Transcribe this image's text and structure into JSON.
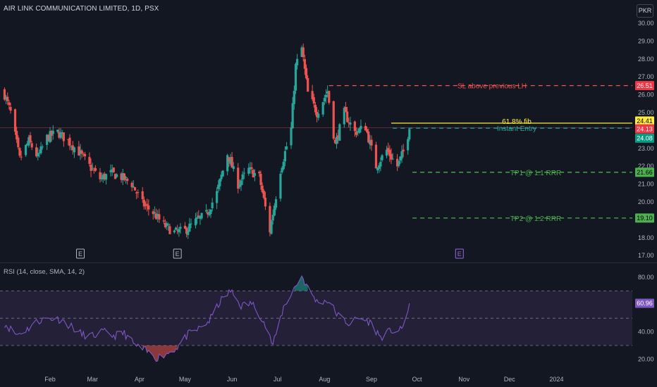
{
  "header": {
    "title": "AIR LINK COMMUNICATION LIMITED, 1D, PSX",
    "currency": "PKR"
  },
  "rsi_header": {
    "title": "RSI (14, close, SMA, 14, 2)"
  },
  "colors": {
    "background": "#131722",
    "up": "#26a69a",
    "down": "#ef5350",
    "rsi_line": "#7e57c2",
    "rsi_band": "#2a2440",
    "sl_line": "#ef5350",
    "fib_line": "#ffeb3b",
    "entry_line": "#26a69a",
    "tp_line": "#4caf50",
    "axis_text": "#b2b5be"
  },
  "chart_data": [
    {
      "type": "candlestick",
      "title": "AIR LINK COMMUNICATION LIMITED, 1D, PSX",
      "x_axis": {
        "tick_labels": [
          "Feb",
          "Mar",
          "Apr",
          "May",
          "Jun",
          "Jul",
          "Aug",
          "Sep",
          "Oct",
          "Nov",
          "Dec",
          "2024"
        ]
      },
      "y_axis": {
        "unit": "PKR",
        "range": [
          17.0,
          30.5
        ],
        "tick_labels": [
          "30.00",
          "29.00",
          "28.00",
          "27.00",
          "26.00",
          "25.00",
          "24.00",
          "23.00",
          "22.00",
          "21.00",
          "20.00",
          "19.00",
          "18.00",
          "17.00"
        ]
      },
      "close_path": [
        [
          "2023-01-02",
          26.0
        ],
        [
          "2023-01-06",
          25.0
        ],
        [
          "2023-01-12",
          22.4
        ],
        [
          "2023-01-18",
          23.4
        ],
        [
          "2023-01-24",
          22.5
        ],
        [
          "2023-01-30",
          23.6
        ],
        [
          "2023-02-06",
          23.9
        ],
        [
          "2023-02-13",
          23.4
        ],
        [
          "2023-02-20",
          22.8
        ],
        [
          "2023-02-27",
          22.0
        ],
        [
          "2023-03-06",
          21.3
        ],
        [
          "2023-03-13",
          21.6
        ],
        [
          "2023-03-20",
          21.4
        ],
        [
          "2023-03-27",
          21.0
        ],
        [
          "2023-04-03",
          19.9
        ],
        [
          "2023-04-10",
          19.4
        ],
        [
          "2023-04-17",
          18.7
        ],
        [
          "2023-04-24",
          18.3
        ],
        [
          "2023-05-01",
          18.4
        ],
        [
          "2023-05-08",
          18.9
        ],
        [
          "2023-05-15",
          19.3
        ],
        [
          "2023-05-22",
          20.5
        ],
        [
          "2023-05-29",
          22.7
        ],
        [
          "2023-06-05",
          21.0
        ],
        [
          "2023-06-12",
          21.8
        ],
        [
          "2023-06-19",
          21.4
        ],
        [
          "2023-06-26",
          18.4
        ],
        [
          "2023-07-03",
          21.8
        ],
        [
          "2023-07-10",
          24.1
        ],
        [
          "2023-07-13",
          27.6
        ],
        [
          "2023-07-17",
          28.6
        ],
        [
          "2023-07-21",
          26.1
        ],
        [
          "2023-07-27",
          25.0
        ],
        [
          "2023-08-03",
          26.2
        ],
        [
          "2023-08-08",
          23.2
        ],
        [
          "2023-08-14",
          25.0
        ],
        [
          "2023-08-21",
          23.9
        ],
        [
          "2023-08-28",
          24.2
        ],
        [
          "2023-09-04",
          22.0
        ],
        [
          "2023-09-11",
          22.9
        ],
        [
          "2023-09-18",
          22.0
        ],
        [
          "2023-09-22",
          22.8
        ],
        [
          "2023-09-26",
          24.08
        ]
      ],
      "levels": [
        {
          "name": "SL above previous LH",
          "value": 26.51,
          "label": "SL above previous LH",
          "style": "dashed"
        },
        {
          "name": "61.8% fib",
          "value": 24.41,
          "label": "61.8% fib",
          "style": "solid"
        },
        {
          "name": "Instant Entry",
          "value": 24.13,
          "label": "Instant Entry",
          "style": "dashed"
        },
        {
          "name": "TP1 @ 1:1 RRR",
          "value": 21.66,
          "label": "TP1 @ 1:1 RRR",
          "style": "dashed"
        },
        {
          "name": "TP2 @ 1:2 RRR",
          "value": 19.1,
          "label": "TP2 @ 1:2 RRR",
          "style": "dashed"
        }
      ],
      "price_tags": [
        "26.51",
        "24.41",
        "24.13",
        "24.08",
        "21.66",
        "19.10"
      ],
      "last_price": 24.08,
      "earnings_markers": [
        "E",
        "E",
        "E"
      ]
    },
    {
      "type": "line",
      "title": "RSI (14, close, SMA, 14, 2)",
      "y_axis": {
        "range": [
          15,
          85
        ],
        "tick_labels": [
          "80.00",
          "60.00",
          "40.00",
          "20.00"
        ],
        "bands": [
          30,
          50,
          70
        ]
      },
      "series": [
        {
          "values_path": [
            [
              "2023-01-02",
              46
            ],
            [
              "2023-01-10",
              38
            ],
            [
              "2023-01-17",
              42
            ],
            [
              "2023-01-24",
              48
            ],
            [
              "2023-02-01",
              50
            ],
            [
              "2023-02-08",
              49
            ],
            [
              "2023-02-15",
              44
            ],
            [
              "2023-02-22",
              38
            ],
            [
              "2023-03-01",
              37
            ],
            [
              "2023-03-08",
              40
            ],
            [
              "2023-03-15",
              37
            ],
            [
              "2023-03-22",
              39
            ],
            [
              "2023-03-29",
              30
            ],
            [
              "2023-04-05",
              26
            ],
            [
              "2023-04-12",
              21
            ],
            [
              "2023-04-19",
              24
            ],
            [
              "2023-04-26",
              29
            ],
            [
              "2023-05-03",
              38
            ],
            [
              "2023-05-10",
              42
            ],
            [
              "2023-05-17",
              48
            ],
            [
              "2023-05-24",
              62
            ],
            [
              "2023-05-31",
              70
            ],
            [
              "2023-06-07",
              59
            ],
            [
              "2023-06-14",
              61
            ],
            [
              "2023-06-21",
              50
            ],
            [
              "2023-06-28",
              30
            ],
            [
              "2023-07-05",
              58
            ],
            [
              "2023-07-12",
              72
            ],
            [
              "2023-07-17",
              81
            ],
            [
              "2023-07-21",
              72
            ],
            [
              "2023-07-27",
              62
            ],
            [
              "2023-08-03",
              63
            ],
            [
              "2023-08-10",
              52
            ],
            [
              "2023-08-17",
              46
            ],
            [
              "2023-08-24",
              50
            ],
            [
              "2023-08-31",
              47
            ],
            [
              "2023-09-07",
              36
            ],
            [
              "2023-09-14",
              41
            ],
            [
              "2023-09-21",
              41
            ],
            [
              "2023-09-26",
              60.96
            ]
          ]
        }
      ],
      "value_tag": "60.96"
    }
  ]
}
